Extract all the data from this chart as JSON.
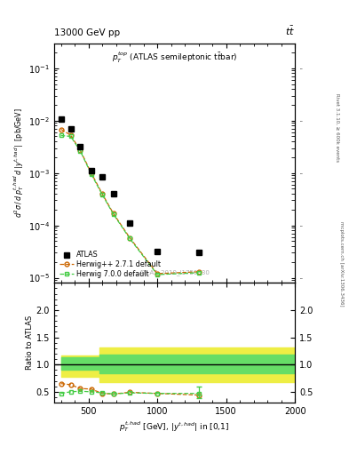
{
  "atlas_x": [
    300,
    370,
    440,
    520,
    600,
    680,
    800,
    1000,
    1300
  ],
  "atlas_y": [
    0.0105,
    0.007,
    0.0032,
    0.0011,
    0.00085,
    0.0004,
    0.00011,
    3.2e-05,
    3e-05
  ],
  "herwig271_x": [
    300,
    370,
    440,
    520,
    600,
    680,
    800,
    1000,
    1300
  ],
  "herwig271_y": [
    0.0068,
    0.0053,
    0.0027,
    0.001,
    0.0004,
    0.00017,
    5.8e-05,
    1.2e-05,
    1.3e-05
  ],
  "herwig700_x": [
    300,
    370,
    440,
    520,
    600,
    680,
    800,
    1000,
    1300
  ],
  "herwig700_y": [
    0.0052,
    0.005,
    0.00265,
    0.00095,
    0.000385,
    0.000165,
    5.6e-05,
    1.15e-05,
    1.25e-05
  ],
  "ratio_herwig271_x": [
    300,
    370,
    440,
    520,
    600,
    680,
    800,
    1000,
    1300
  ],
  "ratio_herwig271_y": [
    0.65,
    0.63,
    0.56,
    0.55,
    0.47,
    0.46,
    0.49,
    0.47,
    0.44
  ],
  "ratio_herwig700_x": [
    300,
    370,
    440,
    520,
    600,
    680,
    800,
    1000,
    1300
  ],
  "ratio_herwig700_y": [
    0.47,
    0.5,
    0.51,
    0.5,
    0.48,
    0.46,
    0.48,
    0.47,
    0.47
  ],
  "herwig271_color": "#cc6600",
  "herwig700_color": "#44cc44",
  "atlas_color": "#000000",
  "band_inner_color": "#66dd66",
  "band_outer_color": "#eeee44",
  "xlim": [
    250,
    2000
  ],
  "ylim_main": [
    8e-06,
    0.3
  ],
  "ylim_ratio": [
    0.3,
    2.5
  ],
  "ratio_yticks": [
    0.5,
    1.0,
    1.5,
    2.0
  ]
}
